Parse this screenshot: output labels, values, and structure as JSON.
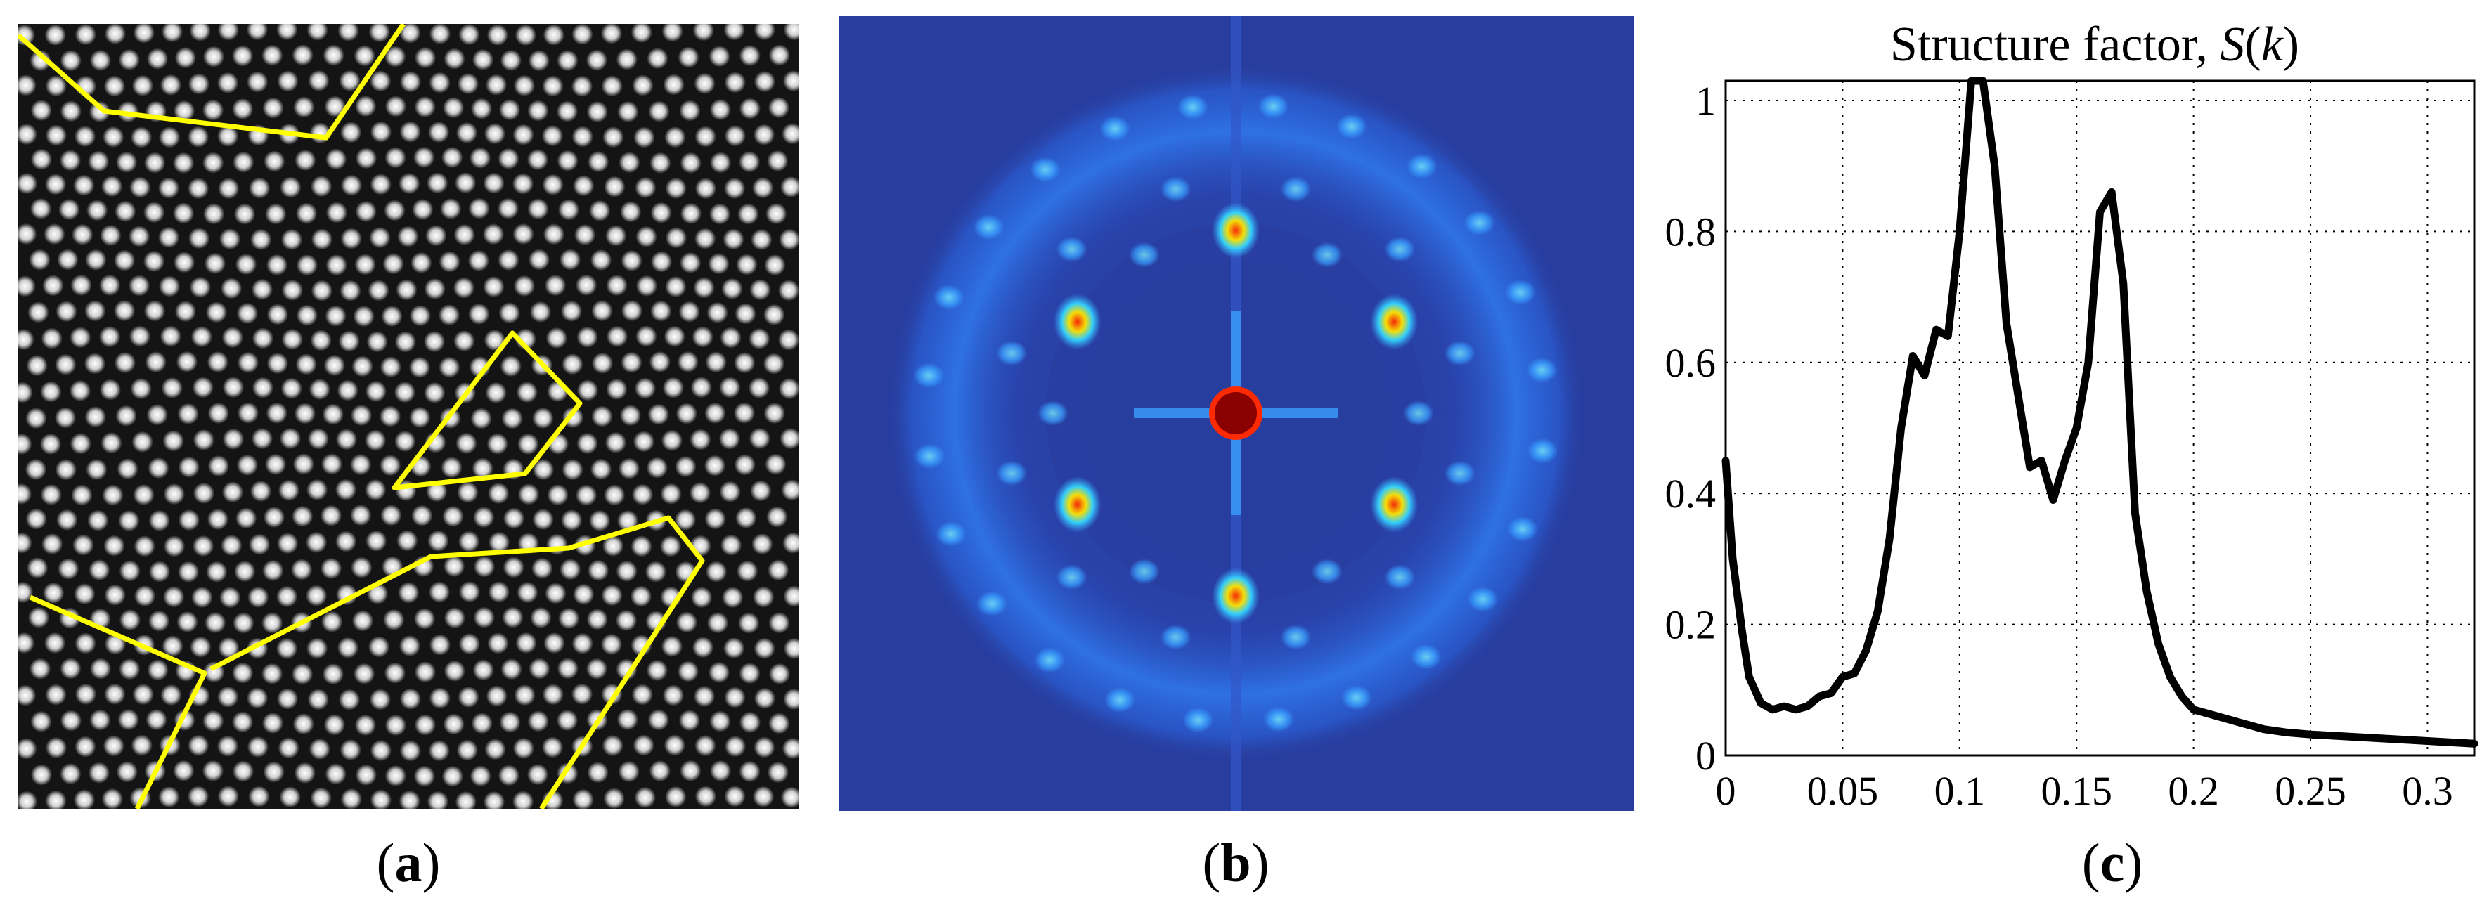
{
  "panels": [
    {
      "label": "a",
      "caption_open": "(",
      "caption_close": ")"
    },
    {
      "label": "b",
      "caption_open": "(",
      "caption_close": ")"
    },
    {
      "label": "c",
      "caption_open": "(",
      "caption_close": ")"
    }
  ],
  "colors": {
    "lattice_background": "#141414",
    "lattice_spot": "#f2f2f2",
    "boundary_lines": "#ffff00",
    "fft_background": "#283d9e",
    "fft_ring": "#3aa0ff",
    "fft_peak": "#ff2a00",
    "fft_center": "#8b0000",
    "curve": "#000000",
    "grid": "#000000"
  },
  "chart_data": {
    "type": "line",
    "title_text": "Structure factor, ",
    "title_symbol": "S",
    "title_arg": "k",
    "xlabel": "",
    "ylabel": "",
    "xlim": [
      0,
      0.32
    ],
    "ylim": [
      0,
      1.03
    ],
    "grid": true,
    "x_ticks": [
      {
        "value": 0,
        "label": "0"
      },
      {
        "value": 0.05,
        "label": "0.05"
      },
      {
        "value": 0.1,
        "label": "0.1"
      },
      {
        "value": 0.15,
        "label": "0.15"
      },
      {
        "value": 0.2,
        "label": "0.2"
      },
      {
        "value": 0.25,
        "label": "0.25"
      },
      {
        "value": 0.3,
        "label": "0.3"
      }
    ],
    "y_ticks": [
      {
        "value": 0,
        "label": "0"
      },
      {
        "value": 0.2,
        "label": "0.2"
      },
      {
        "value": 0.4,
        "label": "0.4"
      },
      {
        "value": 0.6,
        "label": "0.6"
      },
      {
        "value": 0.8,
        "label": "0.8"
      },
      {
        "value": 1.0,
        "label": "1"
      }
    ],
    "series": [
      {
        "x": [
          0,
          0.003,
          0.007,
          0.01,
          0.015,
          0.02,
          0.025,
          0.03,
          0.035,
          0.04,
          0.045,
          0.05,
          0.055,
          0.06,
          0.065,
          0.07,
          0.075,
          0.08,
          0.085,
          0.09,
          0.095,
          0.1,
          0.105,
          0.11,
          0.115,
          0.12,
          0.125,
          0.13,
          0.135,
          0.14,
          0.145,
          0.15,
          0.155,
          0.16,
          0.165,
          0.17,
          0.175,
          0.18,
          0.185,
          0.19,
          0.195,
          0.2,
          0.21,
          0.22,
          0.23,
          0.24,
          0.25,
          0.26,
          0.27,
          0.28,
          0.29,
          0.3,
          0.31,
          0.32
        ],
        "y": [
          0.45,
          0.3,
          0.19,
          0.12,
          0.08,
          0.07,
          0.075,
          0.07,
          0.075,
          0.09,
          0.095,
          0.12,
          0.125,
          0.16,
          0.22,
          0.33,
          0.5,
          0.61,
          0.58,
          0.65,
          0.64,
          0.8,
          1.04,
          1.03,
          0.9,
          0.66,
          0.55,
          0.44,
          0.45,
          0.39,
          0.45,
          0.5,
          0.6,
          0.83,
          0.86,
          0.72,
          0.37,
          0.25,
          0.17,
          0.12,
          0.09,
          0.07,
          0.06,
          0.05,
          0.04,
          0.035,
          0.032,
          0.03,
          0.028,
          0.026,
          0.024,
          0.022,
          0.02,
          0.018
        ]
      }
    ]
  }
}
